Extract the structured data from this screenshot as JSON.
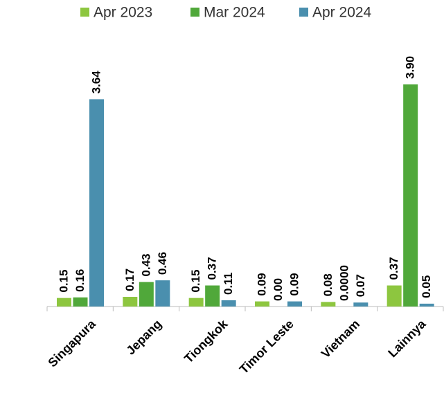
{
  "chart_data": {
    "type": "bar",
    "categories": [
      "Singapura",
      "Jepang",
      "Tiongkok",
      "Timor Leste",
      "Vietnam",
      "Lainnya"
    ],
    "series": [
      {
        "name": "Apr 2023",
        "color": "#8dc63f",
        "values": [
          0.15,
          0.17,
          0.15,
          0.09,
          0.08,
          0.37
        ],
        "value_labels": [
          "0.15",
          "0.17",
          "0.15",
          "0.09",
          "0.08",
          "0.37"
        ]
      },
      {
        "name": "Mar 2024",
        "color": "#50a83a",
        "values": [
          0.16,
          0.43,
          0.37,
          0,
          0,
          3.9
        ],
        "value_labels": [
          "0.16",
          "0.43",
          "0.37",
          "0.00",
          "0.0000",
          "3.90"
        ]
      },
      {
        "name": "Apr 2024",
        "color": "#4a8fae",
        "values": [
          3.64,
          0.46,
          0.11,
          0.09,
          0.07,
          0.05
        ],
        "value_labels": [
          "3.64",
          "0.46",
          "0.11",
          "0.09",
          "0.07",
          "0.05"
        ]
      }
    ]
  }
}
